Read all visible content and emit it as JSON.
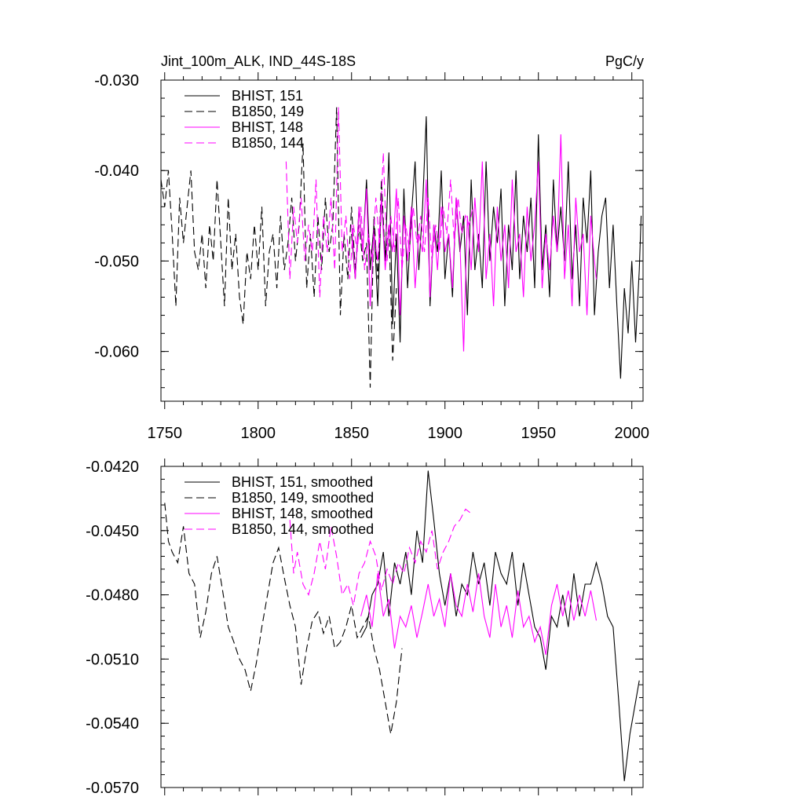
{
  "figure": {
    "title_left": "Jint_100m_ALK, IND_44S-18S",
    "title_right": "PgC/y"
  },
  "chart_data": [
    {
      "type": "line",
      "xlim": [
        1748,
        2006
      ],
      "ylim": [
        -0.0655,
        -0.03
      ],
      "x_ticks": [
        1750,
        1800,
        1850,
        1900,
        1950,
        2000
      ],
      "x_tick_labels": [
        "1750",
        "1800",
        "1850",
        "1900",
        "1950",
        "2000"
      ],
      "y_ticks": [
        -0.03,
        -0.04,
        -0.05,
        -0.06
      ],
      "y_tick_labels": [
        "-0.030",
        "-0.040",
        "-0.050",
        "-0.060"
      ],
      "y_minor_step": 0.002,
      "x_minor_step": 10,
      "legend_position": "top-left",
      "series": [
        {
          "name": "BHIST, 151",
          "color": "#000000",
          "dash": "solid",
          "x": [
            1850,
            1852,
            1854,
            1856,
            1858,
            1860,
            1862,
            1864,
            1866,
            1868,
            1870,
            1872,
            1874,
            1876,
            1878,
            1880,
            1882,
            1884,
            1886,
            1888,
            1890,
            1892,
            1894,
            1896,
            1898,
            1900,
            1902,
            1904,
            1906,
            1908,
            1910,
            1912,
            1914,
            1916,
            1918,
            1920,
            1922,
            1924,
            1926,
            1928,
            1930,
            1932,
            1934,
            1936,
            1938,
            1940,
            1942,
            1944,
            1946,
            1948,
            1950,
            1952,
            1954,
            1956,
            1958,
            1960,
            1962,
            1964,
            1966,
            1968,
            1970,
            1972,
            1974,
            1976,
            1978,
            1980,
            1982,
            1984,
            1986,
            1988,
            1990,
            1992,
            1994,
            1996,
            1998,
            2000,
            2002,
            2004,
            2005
          ],
          "y": [
            -0.047,
            -0.052,
            -0.044,
            -0.049,
            -0.041,
            -0.051,
            -0.046,
            -0.055,
            -0.043,
            -0.05,
            -0.038,
            -0.057,
            -0.047,
            -0.059,
            -0.042,
            -0.053,
            -0.045,
            -0.039,
            -0.051,
            -0.044,
            -0.034,
            -0.055,
            -0.046,
            -0.049,
            -0.04,
            -0.052,
            -0.047,
            -0.054,
            -0.043,
            -0.049,
            -0.045,
            -0.056,
            -0.041,
            -0.051,
            -0.047,
            -0.053,
            -0.039,
            -0.05,
            -0.044,
            -0.048,
            -0.042,
            -0.055,
            -0.046,
            -0.051,
            -0.04,
            -0.052,
            -0.045,
            -0.049,
            -0.043,
            -0.053,
            -0.036,
            -0.051,
            -0.046,
            -0.054,
            -0.041,
            -0.049,
            -0.044,
            -0.05,
            -0.039,
            -0.052,
            -0.046,
            -0.055,
            -0.043,
            -0.048,
            -0.04,
            -0.056,
            -0.049,
            -0.045,
            -0.043,
            -0.053,
            -0.046,
            -0.055,
            -0.063,
            -0.053,
            -0.058,
            -0.05,
            -0.059,
            -0.051,
            -0.045
          ]
        },
        {
          "name": "B1850, 149",
          "color": "#000000",
          "dash": "dashed",
          "x": [
            1748,
            1750,
            1752,
            1754,
            1756,
            1758,
            1760,
            1762,
            1764,
            1766,
            1768,
            1770,
            1772,
            1774,
            1776,
            1778,
            1780,
            1782,
            1784,
            1786,
            1788,
            1790,
            1792,
            1794,
            1796,
            1798,
            1800,
            1802,
            1804,
            1806,
            1808,
            1810,
            1812,
            1814,
            1816,
            1818,
            1820,
            1822,
            1824,
            1826,
            1828,
            1830,
            1832,
            1834,
            1836,
            1838,
            1840,
            1842,
            1844,
            1846,
            1848,
            1850,
            1852,
            1854,
            1856,
            1858,
            1860,
            1862,
            1864,
            1866,
            1868,
            1870,
            1872,
            1874
          ],
          "y": [
            -0.041,
            -0.044,
            -0.04,
            -0.047,
            -0.055,
            -0.043,
            -0.048,
            -0.044,
            -0.04,
            -0.049,
            -0.051,
            -0.047,
            -0.053,
            -0.046,
            -0.05,
            -0.041,
            -0.048,
            -0.055,
            -0.043,
            -0.051,
            -0.047,
            -0.054,
            -0.057,
            -0.049,
            -0.052,
            -0.046,
            -0.051,
            -0.044,
            -0.055,
            -0.049,
            -0.047,
            -0.053,
            -0.045,
            -0.051,
            -0.048,
            -0.043,
            -0.05,
            -0.046,
            -0.037,
            -0.053,
            -0.047,
            -0.054,
            -0.045,
            -0.051,
            -0.043,
            -0.049,
            -0.046,
            -0.033,
            -0.056,
            -0.047,
            -0.052,
            -0.044,
            -0.051,
            -0.046,
            -0.05,
            -0.048,
            -0.064,
            -0.045,
            -0.052,
            -0.041,
            -0.05,
            -0.046,
            -0.061,
            -0.053
          ]
        },
        {
          "name": "BHIST, 148",
          "color": "#ff00ff",
          "dash": "solid",
          "x": [
            1850,
            1852,
            1854,
            1856,
            1858,
            1860,
            1862,
            1864,
            1866,
            1868,
            1870,
            1872,
            1874,
            1876,
            1878,
            1880,
            1882,
            1884,
            1886,
            1888,
            1890,
            1892,
            1894,
            1896,
            1898,
            1900,
            1902,
            1904,
            1906,
            1908,
            1910,
            1912,
            1914,
            1916,
            1918,
            1920,
            1922,
            1924,
            1926,
            1928,
            1930,
            1932,
            1934,
            1936,
            1938,
            1940,
            1942,
            1944,
            1946,
            1948,
            1950,
            1952,
            1954,
            1956,
            1958,
            1960,
            1962,
            1964,
            1966,
            1968,
            1970,
            1972,
            1974,
            1976,
            1978,
            1980,
            1981
          ],
          "y": [
            -0.046,
            -0.052,
            -0.044,
            -0.049,
            -0.042,
            -0.055,
            -0.047,
            -0.05,
            -0.043,
            -0.051,
            -0.046,
            -0.049,
            -0.042,
            -0.056,
            -0.045,
            -0.05,
            -0.044,
            -0.053,
            -0.047,
            -0.049,
            -0.041,
            -0.054,
            -0.046,
            -0.051,
            -0.044,
            -0.049,
            -0.047,
            -0.053,
            -0.043,
            -0.048,
            -0.06,
            -0.045,
            -0.051,
            -0.043,
            -0.049,
            -0.039,
            -0.052,
            -0.047,
            -0.055,
            -0.044,
            -0.05,
            -0.046,
            -0.053,
            -0.041,
            -0.049,
            -0.047,
            -0.054,
            -0.044,
            -0.05,
            -0.046,
            -0.039,
            -0.053,
            -0.047,
            -0.051,
            -0.045,
            -0.049,
            -0.036,
            -0.052,
            -0.046,
            -0.055,
            -0.043,
            -0.049,
            -0.047,
            -0.056,
            -0.045,
            -0.05,
            -0.052
          ]
        },
        {
          "name": "B1850, 144",
          "color": "#ff00ff",
          "dash": "dashed",
          "x": [
            1815,
            1817,
            1819,
            1821,
            1823,
            1825,
            1827,
            1829,
            1831,
            1833,
            1835,
            1837,
            1839,
            1841,
            1843,
            1845,
            1847,
            1849,
            1851,
            1853,
            1855,
            1857,
            1859,
            1861,
            1863,
            1865,
            1867,
            1869,
            1871,
            1873,
            1875,
            1877,
            1879,
            1881,
            1883,
            1885,
            1887,
            1889,
            1891,
            1893,
            1895,
            1897,
            1899,
            1901,
            1903,
            1905,
            1907,
            1909,
            1911,
            1913,
            1915
          ],
          "y": [
            -0.039,
            -0.052,
            -0.044,
            -0.048,
            -0.043,
            -0.05,
            -0.046,
            -0.049,
            -0.041,
            -0.054,
            -0.045,
            -0.049,
            -0.043,
            -0.051,
            -0.033,
            -0.049,
            -0.045,
            -0.052,
            -0.046,
            -0.049,
            -0.044,
            -0.051,
            -0.047,
            -0.05,
            -0.043,
            -0.048,
            -0.038,
            -0.05,
            -0.045,
            -0.049,
            -0.043,
            -0.051,
            -0.046,
            -0.049,
            -0.044,
            -0.048,
            -0.045,
            -0.049,
            -0.043,
            -0.05,
            -0.046,
            -0.049,
            -0.044,
            -0.047,
            -0.041,
            -0.048,
            -0.043,
            -0.047,
            -0.045,
            -0.046,
            -0.044
          ]
        }
      ]
    },
    {
      "type": "line",
      "xlim": [
        1748,
        2006
      ],
      "ylim": [
        -0.057,
        -0.042
      ],
      "x_ticks": [
        1750,
        1800,
        1850,
        1900,
        1950,
        2000
      ],
      "y_ticks": [
        -0.042,
        -0.045,
        -0.048,
        -0.051,
        -0.054,
        -0.057
      ],
      "y_tick_labels": [
        "-0.0420",
        "-0.0450",
        "-0.0480",
        "-0.0510",
        "-0.0540",
        "-0.0570"
      ],
      "y_minor_step": 0.0006,
      "x_minor_step": 10,
      "legend_position": "top-left",
      "series": [
        {
          "name": "BHIST, 151, smoothed",
          "color": "#000000",
          "dash": "solid",
          "x": [
            1855,
            1858,
            1861,
            1864,
            1867,
            1870,
            1873,
            1876,
            1879,
            1882,
            1885,
            1888,
            1891,
            1894,
            1897,
            1900,
            1903,
            1906,
            1909,
            1912,
            1915,
            1918,
            1921,
            1924,
            1927,
            1930,
            1933,
            1936,
            1939,
            1942,
            1945,
            1948,
            1951,
            1954,
            1957,
            1960,
            1963,
            1966,
            1969,
            1972,
            1975,
            1978,
            1981,
            1984,
            1987,
            1990,
            1993,
            1996,
            1999,
            2002,
            2004
          ],
          "y": [
            -0.05,
            -0.0495,
            -0.048,
            -0.0475,
            -0.046,
            -0.049,
            -0.0465,
            -0.0475,
            -0.046,
            -0.048,
            -0.045,
            -0.0465,
            -0.0422,
            -0.0445,
            -0.047,
            -0.0485,
            -0.047,
            -0.049,
            -0.0475,
            -0.048,
            -0.046,
            -0.0475,
            -0.0465,
            -0.0485,
            -0.046,
            -0.047,
            -0.0475,
            -0.046,
            -0.0485,
            -0.0465,
            -0.048,
            -0.0495,
            -0.05,
            -0.0515,
            -0.049,
            -0.0495,
            -0.048,
            -0.0495,
            -0.047,
            -0.049,
            -0.0475,
            -0.0475,
            -0.0465,
            -0.0475,
            -0.049,
            -0.0495,
            -0.053,
            -0.0567,
            -0.0545,
            -0.053,
            -0.052
          ]
        },
        {
          "name": "B1850, 149, smoothed",
          "color": "#000000",
          "dash": "dashed",
          "x": [
            1750,
            1752,
            1754,
            1757,
            1760,
            1763,
            1766,
            1769,
            1772,
            1775,
            1778,
            1781,
            1784,
            1787,
            1790,
            1793,
            1796,
            1799,
            1802,
            1805,
            1808,
            1811,
            1814,
            1817,
            1820,
            1823,
            1826,
            1829,
            1832,
            1835,
            1838,
            1841,
            1844,
            1847,
            1850,
            1853,
            1856,
            1859,
            1862,
            1865,
            1868,
            1871,
            1874,
            1877
          ],
          "y": [
            -0.0437,
            -0.0455,
            -0.046,
            -0.0465,
            -0.0448,
            -0.047,
            -0.0475,
            -0.05,
            -0.0488,
            -0.047,
            -0.0462,
            -0.0478,
            -0.0495,
            -0.0502,
            -0.051,
            -0.0515,
            -0.0525,
            -0.0512,
            -0.0495,
            -0.048,
            -0.0465,
            -0.0458,
            -0.0472,
            -0.0485,
            -0.0495,
            -0.0522,
            -0.0505,
            -0.0492,
            -0.0488,
            -0.0498,
            -0.049,
            -0.0505,
            -0.0502,
            -0.0495,
            -0.0485,
            -0.05,
            -0.0495,
            -0.049,
            -0.0505,
            -0.0515,
            -0.053,
            -0.0545,
            -0.053,
            -0.0505
          ]
        },
        {
          "name": "BHIST, 148, smoothed",
          "color": "#ff00ff",
          "dash": "solid",
          "x": [
            1855,
            1858,
            1861,
            1864,
            1867,
            1870,
            1873,
            1876,
            1879,
            1882,
            1885,
            1888,
            1891,
            1894,
            1897,
            1900,
            1903,
            1906,
            1909,
            1912,
            1915,
            1918,
            1921,
            1924,
            1927,
            1930,
            1933,
            1936,
            1939,
            1942,
            1945,
            1948,
            1951,
            1954,
            1957,
            1960,
            1963,
            1966,
            1969,
            1972,
            1975,
            1978,
            1981
          ],
          "y": [
            -0.049,
            -0.048,
            -0.0495,
            -0.047,
            -0.049,
            -0.0482,
            -0.0505,
            -0.049,
            -0.0495,
            -0.0485,
            -0.05,
            -0.0488,
            -0.0475,
            -0.049,
            -0.0482,
            -0.0495,
            -0.047,
            -0.0485,
            -0.049,
            -0.0475,
            -0.0488,
            -0.047,
            -0.049,
            -0.05,
            -0.0475,
            -0.0495,
            -0.0485,
            -0.05,
            -0.0478,
            -0.0495,
            -0.049,
            -0.0502,
            -0.0495,
            -0.0508,
            -0.0485,
            -0.0475,
            -0.049,
            -0.0478,
            -0.0492,
            -0.048,
            -0.049,
            -0.0478,
            -0.0492
          ]
        },
        {
          "name": "B1850, 144, smoothed",
          "color": "#ff00ff",
          "dash": "dashed",
          "x": [
            1817,
            1819,
            1821,
            1824,
            1827,
            1830,
            1833,
            1836,
            1839,
            1842,
            1845,
            1848,
            1851,
            1854,
            1857,
            1860,
            1863,
            1866,
            1869,
            1872,
            1875,
            1878,
            1881,
            1884,
            1887,
            1890,
            1893,
            1896,
            1899,
            1902,
            1905,
            1908,
            1911,
            1914
          ],
          "y": [
            -0.0445,
            -0.047,
            -0.046,
            -0.0475,
            -0.048,
            -0.047,
            -0.0455,
            -0.0468,
            -0.0448,
            -0.0462,
            -0.048,
            -0.0475,
            -0.0485,
            -0.047,
            -0.0465,
            -0.0455,
            -0.0462,
            -0.0478,
            -0.0468,
            -0.0475,
            -0.0465,
            -0.047,
            -0.0458,
            -0.0465,
            -0.0455,
            -0.046,
            -0.045,
            -0.0468,
            -0.046,
            -0.0455,
            -0.0448,
            -0.0445,
            -0.044,
            -0.0442
          ]
        }
      ]
    }
  ]
}
